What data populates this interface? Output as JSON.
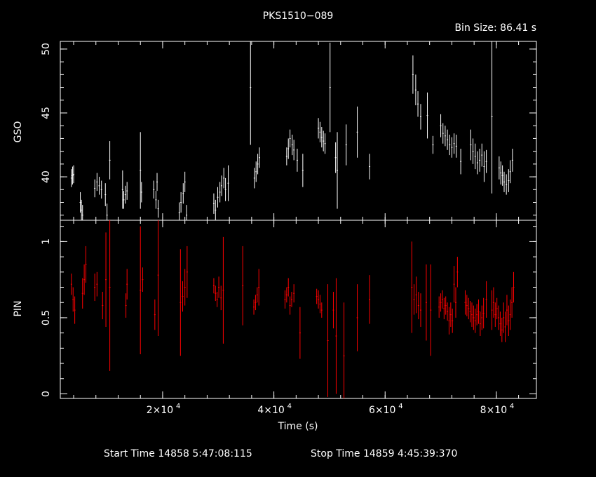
{
  "title": "PKS1510−089",
  "bin_size": "Bin Size: 86.41 s",
  "footer": {
    "start": "Start Time 14858  5:47:08:115",
    "stop": "Stop Time 14859  4:45:39:370"
  },
  "colors": {
    "background": "#000000",
    "axes": "#ffffff",
    "gso": "#ffffff",
    "pin": "#ff0000"
  },
  "chart_data": [
    {
      "type": "scatter",
      "panel": "top",
      "ylabel": "GSO",
      "xlim": [
        1600,
        87200
      ],
      "ylim": [
        36.6,
        50.6
      ],
      "y_ticks": [
        40,
        45,
        50
      ],
      "y_minor_step": 1,
      "series": [
        {
          "color": "#ffffff",
          "points": [
            [
              3600,
              39.9,
              0.7
            ],
            [
              3800,
              40.1,
              0.7
            ],
            [
              4000,
              40.2,
              0.7
            ],
            [
              5200,
              38.0,
              0.8
            ],
            [
              5400,
              37.4,
              0.8
            ],
            [
              5600,
              37.0,
              0.8
            ],
            [
              7800,
              39.1,
              0.7
            ],
            [
              8200,
              39.6,
              0.7
            ],
            [
              8600,
              39.3,
              0.7
            ],
            [
              9000,
              39.0,
              0.7
            ],
            [
              9700,
              38.6,
              0.9
            ],
            [
              10000,
              37.0,
              0.9
            ],
            [
              10500,
              41.3,
              1.5
            ],
            [
              12800,
              39.0,
              1.5
            ],
            [
              13000,
              38.2,
              0.7
            ],
            [
              13300,
              38.6,
              0.7
            ],
            [
              13600,
              38.9,
              0.7
            ],
            [
              16000,
              40.5,
              3.0
            ],
            [
              16200,
              38.8,
              0.8
            ],
            [
              18400,
              39.0,
              0.7
            ],
            [
              18800,
              38.2,
              0.7
            ],
            [
              19000,
              39.6,
              0.7
            ],
            [
              19200,
              37.5,
              0.7
            ],
            [
              23000,
              37.2,
              0.8
            ],
            [
              23300,
              38.0,
              0.8
            ],
            [
              23700,
              38.7,
              0.8
            ],
            [
              24000,
              39.6,
              0.8
            ],
            [
              24300,
              37.0,
              0.8
            ],
            [
              29200,
              37.9,
              0.8
            ],
            [
              29500,
              37.4,
              0.8
            ],
            [
              29900,
              38.4,
              0.8
            ],
            [
              30300,
              38.8,
              0.8
            ],
            [
              30600,
              39.3,
              0.8
            ],
            [
              31000,
              39.9,
              0.8
            ],
            [
              31300,
              39.0,
              0.9
            ],
            [
              31800,
              39.5,
              1.4
            ],
            [
              35800,
              47.0,
              4.5
            ],
            [
              36500,
              39.9,
              0.8
            ],
            [
              36800,
              40.4,
              0.8
            ],
            [
              37100,
              41.0,
              0.8
            ],
            [
              37400,
              41.5,
              0.8
            ],
            [
              42300,
              41.6,
              0.7
            ],
            [
              42600,
              42.2,
              0.8
            ],
            [
              42900,
              43.0,
              0.7
            ],
            [
              43300,
              42.5,
              0.8
            ],
            [
              43600,
              42.1,
              0.8
            ],
            [
              44200,
              41.3,
              0.9
            ],
            [
              45200,
              40.5,
              1.3
            ],
            [
              48000,
              43.8,
              0.8
            ],
            [
              48300,
              43.5,
              0.8
            ],
            [
              48600,
              43.1,
              0.8
            ],
            [
              48900,
              42.8,
              0.8
            ],
            [
              49200,
              42.6,
              0.8
            ],
            [
              50100,
              47.0,
              3.5
            ],
            [
              51100,
              41.5,
              1.2
            ],
            [
              51400,
              40.5,
              3.0
            ],
            [
              53000,
              42.5,
              1.6
            ],
            [
              55000,
              43.5,
              2.0
            ],
            [
              57200,
              40.8,
              1.0
            ],
            [
              65000,
              48.0,
              1.5
            ],
            [
              65500,
              46.8,
              1.2
            ],
            [
              65900,
              45.7,
              1.0
            ],
            [
              66400,
              44.7,
              1.0
            ],
            [
              67600,
              44.8,
              1.8
            ],
            [
              68600,
              42.5,
              0.7
            ],
            [
              70000,
              44.0,
              0.9
            ],
            [
              70400,
              43.4,
              0.8
            ],
            [
              70800,
              43.2,
              0.8
            ],
            [
              71200,
              42.9,
              0.8
            ],
            [
              71600,
              42.5,
              0.8
            ],
            [
              72000,
              42.3,
              0.8
            ],
            [
              72400,
              42.6,
              0.8
            ],
            [
              72800,
              42.4,
              0.9
            ],
            [
              73600,
              41.2,
              1.0
            ],
            [
              75400,
              42.5,
              1.2
            ],
            [
              75800,
              42.0,
              1.0
            ],
            [
              76200,
              41.6,
              1.0
            ],
            [
              76600,
              41.1,
              0.9
            ],
            [
              77000,
              41.3,
              0.9
            ],
            [
              77400,
              41.7,
              0.9
            ],
            [
              77800,
              40.8,
              1.2
            ],
            [
              78200,
              41.2,
              0.9
            ],
            [
              79200,
              44.7,
              6.0
            ],
            [
              80500,
              40.7,
              0.9
            ],
            [
              80800,
              40.3,
              0.9
            ],
            [
              81100,
              40.1,
              0.8
            ],
            [
              81400,
              39.6,
              0.8
            ],
            [
              81800,
              39.4,
              0.8
            ],
            [
              82200,
              39.7,
              0.9
            ],
            [
              82500,
              40.4,
              0.9
            ],
            [
              82900,
              41.3,
              0.9
            ]
          ]
        }
      ]
    },
    {
      "type": "scatter",
      "panel": "bottom",
      "ylabel": "PIN",
      "xlabel": "Time (s)",
      "xlim": [
        1600,
        87200
      ],
      "ylim": [
        -0.03,
        1.14
      ],
      "y_ticks": [
        0,
        0.5,
        1
      ],
      "y_minor_step": 0.1,
      "x_ticks": [
        20000,
        40000,
        60000,
        80000
      ],
      "x_tick_labels": [
        [
          "2×10",
          "4"
        ],
        [
          "4×10",
          "4"
        ],
        [
          "6×10",
          "4"
        ],
        [
          "8×10",
          "4"
        ]
      ],
      "x_minor_step": 4000,
      "series": [
        {
          "color": "#ff0000",
          "points": [
            [
              3600,
              0.72,
              0.07
            ],
            [
              3900,
              0.62,
              0.08
            ],
            [
              4200,
              0.55,
              0.09
            ],
            [
              5600,
              0.66,
              0.1
            ],
            [
              5900,
              0.75,
              0.1
            ],
            [
              6200,
              0.85,
              0.12
            ],
            [
              7800,
              0.7,
              0.09
            ],
            [
              8200,
              0.72,
              0.08
            ],
            [
              9200,
              0.58,
              0.09
            ],
            [
              9800,
              0.75,
              0.31
            ],
            [
              10500,
              0.7,
              0.55
            ],
            [
              13400,
              0.58,
              0.08
            ],
            [
              13600,
              0.72,
              0.1
            ],
            [
              16000,
              0.68,
              0.42
            ],
            [
              16400,
              0.75,
              0.08
            ],
            [
              18600,
              0.52,
              0.1
            ],
            [
              19200,
              0.78,
              0.4
            ],
            [
              23200,
              0.6,
              0.35
            ],
            [
              23600,
              0.64,
              0.1
            ],
            [
              24000,
              0.7,
              0.12
            ],
            [
              24400,
              0.8,
              0.17
            ],
            [
              29200,
              0.71,
              0.05
            ],
            [
              29500,
              0.66,
              0.05
            ],
            [
              29800,
              0.62,
              0.05
            ],
            [
              30100,
              0.7,
              0.07
            ],
            [
              30500,
              0.63,
              0.08
            ],
            [
              30900,
              0.68,
              0.35
            ],
            [
              34400,
              0.71,
              0.26
            ],
            [
              36400,
              0.57,
              0.05
            ],
            [
              36700,
              0.6,
              0.05
            ],
            [
              37000,
              0.65,
              0.05
            ],
            [
              37300,
              0.7,
              0.12
            ],
            [
              42000,
              0.62,
              0.06
            ],
            [
              42300,
              0.65,
              0.05
            ],
            [
              42600,
              0.7,
              0.06
            ],
            [
              42900,
              0.58,
              0.06
            ],
            [
              43200,
              0.62,
              0.05
            ],
            [
              43600,
              0.66,
              0.06
            ],
            [
              44700,
              0.4,
              0.17
            ],
            [
              47700,
              0.64,
              0.05
            ],
            [
              48000,
              0.62,
              0.06
            ],
            [
              48300,
              0.59,
              0.06
            ],
            [
              48600,
              0.55,
              0.05
            ],
            [
              49700,
              0.35,
              0.37
            ],
            [
              50700,
              0.55,
              0.12
            ],
            [
              51200,
              0.38,
              0.38
            ],
            [
              52600,
              0.25,
              0.35
            ],
            [
              55000,
              0.5,
              0.22
            ],
            [
              57200,
              0.62,
              0.16
            ],
            [
              64800,
              0.7,
              0.3
            ],
            [
              65200,
              0.62,
              0.1
            ],
            [
              65600,
              0.65,
              0.12
            ],
            [
              66000,
              0.58,
              0.09
            ],
            [
              66400,
              0.55,
              0.11
            ],
            [
              67400,
              0.6,
              0.25
            ],
            [
              68200,
              0.55,
              0.3
            ],
            [
              69700,
              0.57,
              0.07
            ],
            [
              70000,
              0.6,
              0.06
            ],
            [
              70300,
              0.62,
              0.06
            ],
            [
              70600,
              0.56,
              0.07
            ],
            [
              70900,
              0.58,
              0.06
            ],
            [
              71200,
              0.54,
              0.06
            ],
            [
              71500,
              0.48,
              0.09
            ],
            [
              71800,
              0.52,
              0.08
            ],
            [
              72100,
              0.48,
              0.08
            ],
            [
              72400,
              0.72,
              0.12
            ],
            [
              72700,
              0.6,
              0.1
            ],
            [
              73000,
              0.8,
              0.1
            ],
            [
              74400,
              0.6,
              0.08
            ],
            [
              74700,
              0.58,
              0.07
            ],
            [
              75000,
              0.56,
              0.07
            ],
            [
              75300,
              0.54,
              0.07
            ],
            [
              75600,
              0.52,
              0.08
            ],
            [
              75900,
              0.5,
              0.08
            ],
            [
              76200,
              0.48,
              0.08
            ],
            [
              76500,
              0.52,
              0.07
            ],
            [
              76800,
              0.54,
              0.08
            ],
            [
              77100,
              0.46,
              0.08
            ],
            [
              77400,
              0.5,
              0.08
            ],
            [
              77700,
              0.53,
              0.1
            ],
            [
              78200,
              0.62,
              0.12
            ],
            [
              79200,
              0.55,
              0.13
            ],
            [
              79500,
              0.6,
              0.1
            ],
            [
              79800,
              0.52,
              0.08
            ],
            [
              80100,
              0.56,
              0.07
            ],
            [
              80400,
              0.5,
              0.08
            ],
            [
              80700,
              0.46,
              0.08
            ],
            [
              81000,
              0.42,
              0.08
            ],
            [
              81300,
              0.5,
              0.1
            ],
            [
              81600,
              0.44,
              0.1
            ],
            [
              81900,
              0.55,
              0.1
            ],
            [
              82200,
              0.48,
              0.1
            ],
            [
              82500,
              0.52,
              0.1
            ],
            [
              82800,
              0.6,
              0.1
            ],
            [
              83100,
              0.7,
              0.1
            ]
          ]
        }
      ]
    }
  ]
}
